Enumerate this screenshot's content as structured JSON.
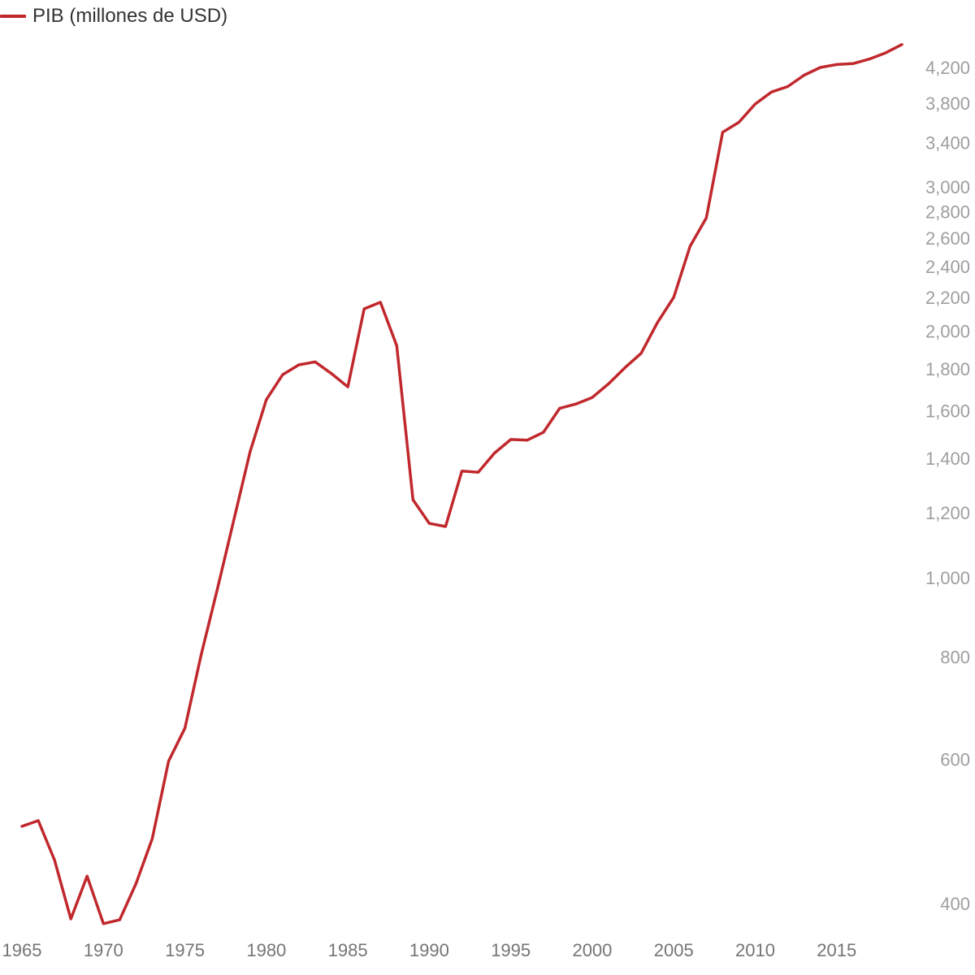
{
  "chart_data": {
    "type": "line",
    "title": "",
    "xlabel": "",
    "ylabel": "",
    "y_scale": "log",
    "xlim": [
      1965,
      2019
    ],
    "ylim": [
      370,
      4500
    ],
    "grid": false,
    "legend_position": "top-left",
    "x_ticks": [
      1965,
      1970,
      1975,
      1980,
      1985,
      1990,
      1995,
      2000,
      2005,
      2010,
      2015
    ],
    "y_ticks": [
      400,
      600,
      800,
      1000,
      1200,
      1400,
      1600,
      1800,
      2000,
      2200,
      2400,
      2600,
      2800,
      3000,
      3400,
      3800,
      4200
    ],
    "y_tick_labels": [
      "400",
      "600",
      "800",
      "1,000",
      "1,200",
      "1,400",
      "1,600",
      "1,800",
      "2,000",
      "2,200",
      "2,400",
      "2,600",
      "2,800",
      "3,000",
      "3,400",
      "3,800",
      "4,200"
    ],
    "series": [
      {
        "name": "PIB (millones de USD)",
        "color": "#c0282d",
        "x": [
          1965,
          1966,
          1967,
          1968,
          1969,
          1970,
          1971,
          1972,
          1973,
          1974,
          1975,
          1976,
          1977,
          1978,
          1979,
          1980,
          1981,
          1982,
          1983,
          1984,
          1985,
          1986,
          1987,
          1988,
          1989,
          1990,
          1991,
          1992,
          1993,
          1994,
          1995,
          1996,
          1997,
          1998,
          1999,
          2000,
          2001,
          2002,
          2003,
          2004,
          2005,
          2006,
          2007,
          2008,
          2009,
          2010,
          2011,
          2012,
          2013,
          2014,
          2015,
          2016,
          2017,
          2018,
          2019
        ],
        "values": [
          497,
          505,
          452,
          383,
          432,
          378,
          382,
          423,
          480,
          597,
          655,
          805,
          970,
          1175,
          1425,
          1650,
          1770,
          1820,
          1835,
          1775,
          1710,
          2130,
          2170,
          1920,
          1245,
          1165,
          1155,
          1350,
          1345,
          1420,
          1475,
          1472,
          1505,
          1610,
          1630,
          1660,
          1725,
          1805,
          1880,
          2050,
          2200,
          2540,
          2750,
          3500,
          3600,
          3790,
          3920,
          3980,
          4110,
          4200,
          4235,
          4245,
          4300,
          4375,
          4480
        ]
      }
    ]
  }
}
